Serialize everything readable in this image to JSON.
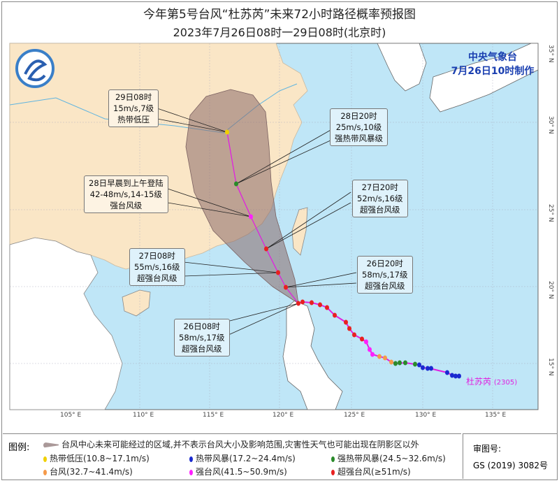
{
  "title": "今年第5号台风“杜苏芮”未来72小时路径概率预报图",
  "subtitle": "2023年7月26日08时一29日08时(北京时)",
  "issuer": {
    "name": "中央气象台",
    "time": "7月26日10时制作"
  },
  "typhoon": {
    "name": "杜苏芮",
    "code": "(2305)"
  },
  "lat_labels": [
    "35° N",
    "30° N",
    "25° N",
    "20° N",
    "15° N"
  ],
  "lon_labels": [
    "105° E",
    "110° E",
    "115° E",
    "120° E",
    "125° E",
    "130° E",
    "135° E"
  ],
  "forecast_points": [
    {
      "time": "29日08时",
      "wind": "15m/s,7级",
      "grade": "热带低压"
    },
    {
      "time": "28日20时",
      "wind": "25m/s,10级",
      "grade": "强热带风暴级"
    },
    {
      "time": "28日早晨到上午登陆",
      "wind": "42-48m/s,14-15级",
      "grade": "强台风级"
    },
    {
      "time": "27日20时",
      "wind": "52m/s,16级",
      "grade": "超强台风级"
    },
    {
      "time": "27日08时",
      "wind": "55m/s,16级",
      "grade": "超强台风级"
    },
    {
      "time": "26日20时",
      "wind": "58m/s,17级",
      "grade": "超强台风级"
    },
    {
      "time": "26日08时",
      "wind": "58m/s,17级",
      "grade": "超强台风级"
    }
  ],
  "legend": {
    "heading": "图例:",
    "cone": "台风中心未来可能经过的区域,并不表示台风大小及影响范围,灾害性天气也可能出现在阴影区以外",
    "items": [
      {
        "label": "热带低压(10.8~17.1m/s)",
        "color": "#f0d000"
      },
      {
        "label": "热带风暴(17.2~24.4m/s)",
        "color": "#1a2ad0"
      },
      {
        "label": "强热带风暴(24.5~32.6m/s)",
        "color": "#2a8a2a"
      },
      {
        "label": "台风(32.7~41.4m/s)",
        "color": "#f59a4a"
      },
      {
        "label": "强台风(41.5~50.9m/s)",
        "color": "#ff20ff"
      },
      {
        "label": "超强台风(≥51m/s)",
        "color": "#e82020"
      }
    ]
  },
  "review": {
    "label": "审图号:",
    "number": "GS (2019) 3082号"
  }
}
